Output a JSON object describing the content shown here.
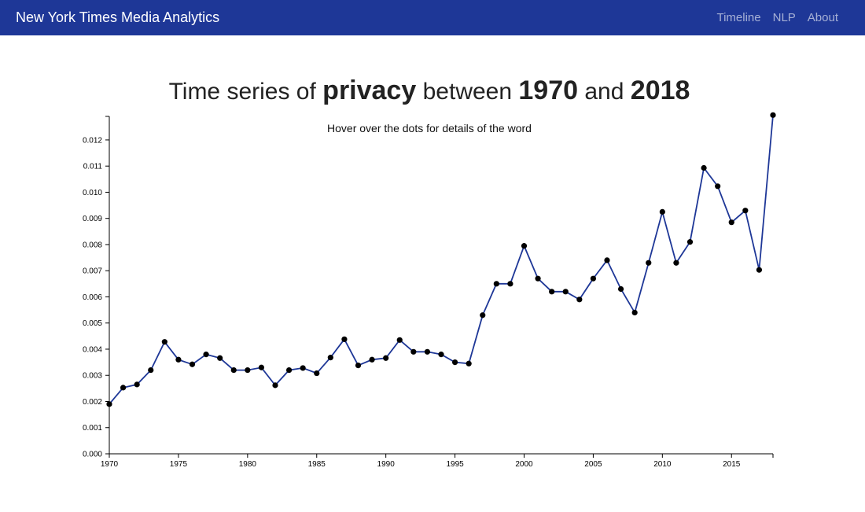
{
  "navbar": {
    "brand": "New York Times Media Analytics",
    "links": [
      "Timeline",
      "NLP",
      "About"
    ],
    "background": "#1e3797"
  },
  "title": {
    "prefix": "Time series of",
    "word": "privacy",
    "between": "between",
    "start": "1970",
    "and": "and",
    "end": "2018"
  },
  "subtitle": "Hover over the dots for details of the word",
  "chart_data": {
    "type": "line",
    "title": "Time series of privacy between 1970 and 2018",
    "subtitle": "Hover over the dots for details of the word",
    "xlabel": "",
    "ylabel": "",
    "xlim": [
      1970,
      2018
    ],
    "ylim": [
      0.0,
      0.0129
    ],
    "x_ticks": [
      "1970",
      "1975",
      "1980",
      "1985",
      "1990",
      "1995",
      "2000",
      "2005",
      "2010",
      "2015"
    ],
    "y_ticks": [
      "0.000",
      "0.001",
      "0.002",
      "0.003",
      "0.004",
      "0.005",
      "0.006",
      "0.007",
      "0.008",
      "0.009",
      "0.010",
      "0.011",
      "0.012"
    ],
    "grid": false,
    "line_color": "#1e3797",
    "point_color": "#000000",
    "series": [
      {
        "x": [
          1970,
          1971,
          1972,
          1973,
          1974,
          1975,
          1976,
          1977,
          1978,
          1979,
          1980,
          1981,
          1982,
          1983,
          1984,
          1985,
          1986,
          1987,
          1988,
          1989,
          1990,
          1991,
          1992,
          1993,
          1994,
          1995,
          1996,
          1997,
          1998,
          1999,
          2000,
          2001,
          2002,
          2003,
          2004,
          2005,
          2006,
          2007,
          2008,
          2009,
          2010,
          2011,
          2012,
          2013,
          2014,
          2015,
          2016,
          2017,
          2018
        ],
        "values": [
          0.0019,
          0.00253,
          0.00265,
          0.0032,
          0.00428,
          0.0036,
          0.00342,
          0.0038,
          0.00366,
          0.0032,
          0.0032,
          0.0033,
          0.00262,
          0.0032,
          0.00328,
          0.00308,
          0.00368,
          0.00438,
          0.00338,
          0.0036,
          0.00366,
          0.00435,
          0.0039,
          0.0039,
          0.0038,
          0.0035,
          0.00345,
          0.0053,
          0.0065,
          0.0065,
          0.00795,
          0.0067,
          0.0062,
          0.0062,
          0.0059,
          0.0067,
          0.0074,
          0.0063,
          0.0054,
          0.0073,
          0.00925,
          0.0073,
          0.0081,
          0.01093,
          0.01023,
          0.00885,
          0.0093,
          0.00703,
          0.01295
        ]
      }
    ]
  }
}
